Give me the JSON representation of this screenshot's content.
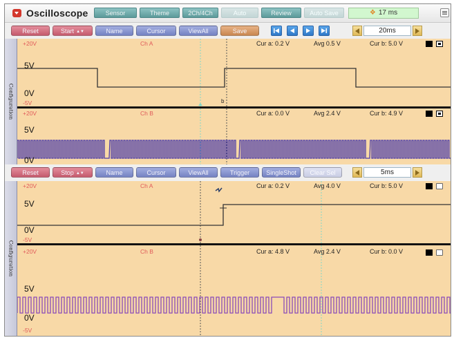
{
  "app": {
    "title": "Oscilloscope",
    "timer": "17 ms"
  },
  "tabs": [
    "Sensor",
    "Theme",
    "2Ch/4Ch",
    "Auto",
    "Review",
    "Auto Save"
  ],
  "top": {
    "buttons": {
      "reset": "Reset",
      "start": "Start",
      "name": "Name",
      "cursor": "Cursor",
      "viewall": "ViewAll",
      "save": "Save"
    },
    "timebase": "20ms",
    "config_label": "Configuration",
    "channels": [
      {
        "label": "Ch A",
        "scale_top": "+20V",
        "level": "5V",
        "zero": "0V",
        "scale_bottom": "-5V",
        "cur_a": "Cur a: 0.2 V",
        "avg": "Avg   0.5 V",
        "cur_b": "Cur b: 5.0 V",
        "marker": "b"
      },
      {
        "label": "Ch B",
        "scale_top": "+20V",
        "level": "5V",
        "zero": "0V",
        "cur_a": "Cur a: 0.0 V",
        "avg": "Avg   2.4 V",
        "cur_b": "Cur b: 4.9 V"
      }
    ]
  },
  "bottom": {
    "buttons": {
      "reset": "Reset",
      "stop": "Stop",
      "name": "Name",
      "cursor": "Cursor",
      "viewall": "ViewAll",
      "trigger": "Trigger",
      "singleshot": "SingleShot",
      "clear": "Clear Sel"
    },
    "timebase": "5ms",
    "config_label": "Configuration",
    "channels": [
      {
        "label": "Ch A",
        "scale_top": "+20V",
        "level": "5V",
        "zero": "0V",
        "scale_bottom": "-5V",
        "cur_a": "Cur a: 0.2 V",
        "avg": "Avg   4.0 V",
        "cur_b": "Cur b: 5.0 V"
      },
      {
        "label": "Ch B",
        "scale_top": "+20V",
        "level": "5V",
        "zero": "0V",
        "scale_bottom": "-5V",
        "cur_a": "Cur a: 4.8 V",
        "avg": "Avg   2.4 V",
        "cur_b": "Cur b: 0.0 V"
      }
    ]
  },
  "colors": {
    "plot_bg": "#f8d9a7",
    "trace_a": "#333333",
    "trace_b_top": "#4a3aa8",
    "trace_b_bottom": "#8a4cb8",
    "scale_label": "#e05a5a",
    "cursor_a": "#7fd6c8"
  }
}
